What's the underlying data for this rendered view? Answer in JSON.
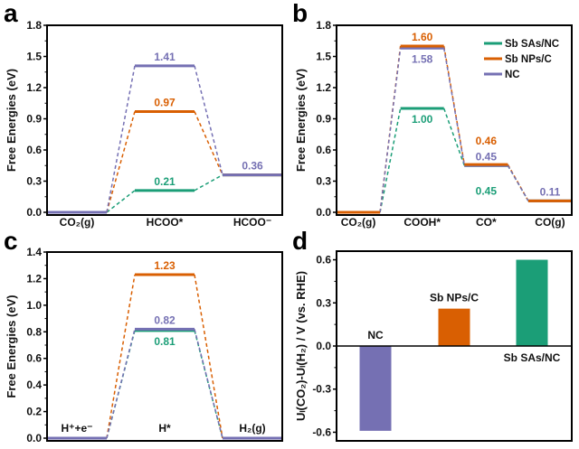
{
  "colors": {
    "Sb SAs/NC": "#1b9e77",
    "Sb NPs/C": "#d95f02",
    "NC": "#7570b3"
  },
  "legend": {
    "entries": [
      "Sb SAs/NC",
      "Sb NPs/C",
      "NC"
    ],
    "placement": "top-right of panel b"
  },
  "chart_data": [
    {
      "panel": "a",
      "type": "line",
      "style": "free-energy step diagram",
      "ylabel": "Free Energies (eV)",
      "ylim": [
        0,
        1.8
      ],
      "yticks": [
        "0.0",
        "0.3",
        "0.6",
        "0.9",
        "1.2",
        "1.5",
        "1.8"
      ],
      "categories": [
        "CO₂(g)",
        "HCOO*",
        "HCOO⁻"
      ],
      "series": [
        {
          "name": "Sb SAs/NC",
          "values": [
            0,
            0.21,
            0.36
          ]
        },
        {
          "name": "Sb NPs/C",
          "values": [
            0,
            0.97,
            0.36
          ]
        },
        {
          "name": "NC",
          "values": [
            0,
            1.41,
            0.36
          ]
        }
      ],
      "annotations": [
        {
          "text": "1.41",
          "series": "NC",
          "state": 1,
          "placement": "above"
        },
        {
          "text": "0.97",
          "series": "Sb NPs/C",
          "state": 1,
          "placement": "above"
        },
        {
          "text": "0.21",
          "series": "Sb SAs/NC",
          "state": 1,
          "placement": "above"
        },
        {
          "text": "0.36",
          "series": "NC",
          "state": 2,
          "placement": "above"
        }
      ]
    },
    {
      "panel": "b",
      "type": "line",
      "style": "free-energy step diagram",
      "ylabel": "Free Energies (eV)",
      "ylim": [
        0,
        1.8
      ],
      "yticks": [
        "0.0",
        "0.3",
        "0.6",
        "0.9",
        "1.2",
        "1.5",
        "1.8"
      ],
      "categories": [
        "CO₂(g)",
        "COOH*",
        "CO*",
        "CO(g)"
      ],
      "series": [
        {
          "name": "Sb SAs/NC",
          "values": [
            0,
            1.0,
            0.45,
            0.11
          ]
        },
        {
          "name": "Sb NPs/C",
          "values": [
            0,
            1.6,
            0.46,
            0.11
          ]
        },
        {
          "name": "NC",
          "values": [
            0,
            1.58,
            0.45,
            0.11
          ]
        }
      ],
      "annotations": [
        {
          "text": "1.60",
          "series": "Sb NPs/C",
          "state": 1,
          "placement": "above"
        },
        {
          "text": "1.58",
          "series": "NC",
          "state": 1,
          "placement": "below"
        },
        {
          "text": "1.00",
          "series": "Sb SAs/NC",
          "state": 1,
          "placement": "below"
        },
        {
          "text": "0.46",
          "series": "Sb NPs/C",
          "state": 2,
          "placement": "above-far"
        },
        {
          "text": "0.45",
          "series": "NC",
          "state": 2,
          "placement": "above"
        },
        {
          "text": "0.45",
          "series": "Sb SAs/NC",
          "state": 2,
          "placement": "below-far"
        },
        {
          "text": "0.11",
          "series": "NC",
          "state": 3,
          "placement": "above"
        }
      ]
    },
    {
      "panel": "c",
      "type": "line",
      "style": "free-energy step diagram",
      "ylabel": "Free Energies (eV)",
      "ylim": [
        0,
        1.4
      ],
      "yticks": [
        "0.0",
        "0.2",
        "0.4",
        "0.6",
        "0.8",
        "1.0",
        "1.2",
        "1.4"
      ],
      "categories": [
        "H⁺+e⁻",
        "H*",
        "H₂(g)"
      ],
      "series": [
        {
          "name": "Sb SAs/NC",
          "values": [
            0,
            0.81,
            0
          ]
        },
        {
          "name": "Sb NPs/C",
          "values": [
            0,
            1.23,
            0
          ]
        },
        {
          "name": "NC",
          "values": [
            0,
            0.82,
            0
          ]
        }
      ],
      "annotations": [
        {
          "text": "1.23",
          "series": "Sb NPs/C",
          "state": 1,
          "placement": "above"
        },
        {
          "text": "0.82",
          "series": "NC",
          "state": 1,
          "placement": "above"
        },
        {
          "text": "0.81",
          "series": "Sb SAs/NC",
          "state": 1,
          "placement": "below"
        }
      ]
    },
    {
      "panel": "d",
      "type": "bar",
      "ylabel": "Uₗ(CO₂)-Uₗ(H₂) / V (vs. RHE)",
      "ylim": [
        -0.66,
        0.66
      ],
      "yticks": [
        "-0.6",
        "-0.3",
        "0.0",
        "0.3",
        "0.6"
      ],
      "categories": [
        "NC",
        "Sb NPs/C",
        "Sb SAs/NC"
      ],
      "values": [
        -0.59,
        0.26,
        0.6
      ]
    }
  ]
}
